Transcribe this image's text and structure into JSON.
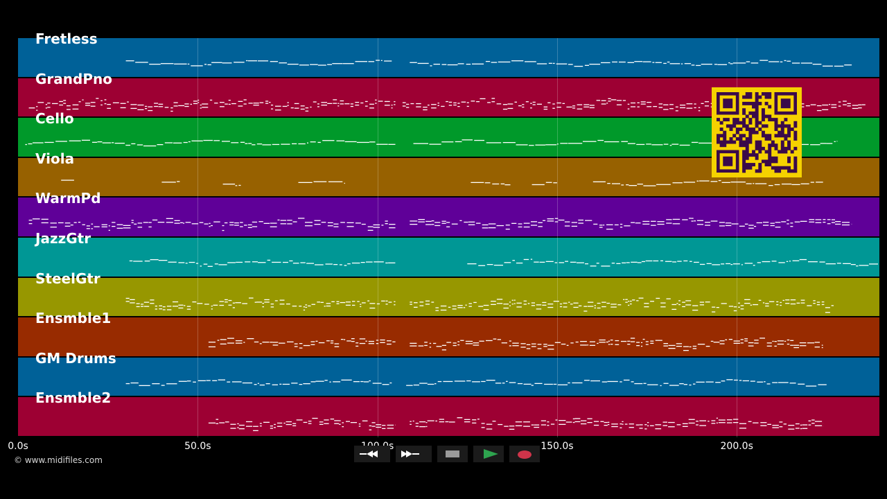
{
  "tracks": [
    {
      "name": "Fretless",
      "color": "#006198"
    },
    {
      "name": "GrandPno",
      "color": "#9d0033"
    },
    {
      "name": "Cello",
      "color": "#00992a"
    },
    {
      "name": "Viola",
      "color": "#976100"
    },
    {
      "name": "WarmPd",
      "color": "#5f0098"
    },
    {
      "name": "JazzGtr",
      "color": "#009795"
    },
    {
      "name": "SteelGtr",
      "color": "#979700"
    },
    {
      "name": "Ensmble1",
      "color": "#982b00"
    },
    {
      "name": "GM Drums",
      "color": "#006198"
    },
    {
      "name": "Ensmble2",
      "color": "#9d0033"
    }
  ],
  "timeline": {
    "ticks": [
      "0.0s",
      "50.0s",
      "100.0s",
      "150.0s",
      "200.0s"
    ],
    "tick_seconds": [
      0,
      50,
      100,
      150,
      200
    ],
    "max_seconds": 240
  },
  "copyright": "© www.midifiles.com",
  "transport": {
    "rewind": "rewind-icon",
    "fast_forward": "fast-forward-icon",
    "stop": "stop-icon",
    "play": "play-icon",
    "record": "record-icon"
  },
  "colors": {
    "background": "#000000",
    "qr_background": "#f5d200",
    "qr_foreground": "#3a0a4a",
    "note": "#ffffff",
    "play_icon": "#2ea44f",
    "record_icon": "#d0344a"
  }
}
